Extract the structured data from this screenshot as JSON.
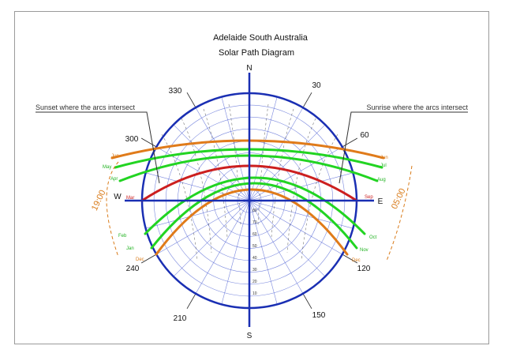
{
  "title": "Adelaide South Australia",
  "subtitle": "Solar Path Diagram",
  "sunset_note": "Sunset where the arcs intersect",
  "sunrise_note": "Sunrise where the arcs intersect",
  "compass": {
    "north": "N",
    "south": "S",
    "east": "E",
    "west": "W"
  },
  "azimuth_labels": [
    "30",
    "60",
    "120",
    "150",
    "210",
    "240",
    "300",
    "330"
  ],
  "altitude_labels": [
    "80",
    "70",
    "60",
    "50",
    "40",
    "30",
    "20",
    "10"
  ],
  "time_labels": {
    "sunset": "19:00",
    "sunrise": "05:00"
  },
  "month_labels_left": [
    {
      "text": "Jun",
      "color": "#d97b1a"
    },
    {
      "text": "May",
      "color": "#22b322"
    },
    {
      "text": "Apr",
      "color": "#22b322"
    },
    {
      "text": "Mar",
      "color": "#cc1f1f"
    },
    {
      "text": "Feb",
      "color": "#22b322"
    },
    {
      "text": "Jan",
      "color": "#22b322"
    },
    {
      "text": "Dec",
      "color": "#d97b1a"
    }
  ],
  "month_labels_right": [
    {
      "text": "Jun",
      "color": "#d97b1a"
    },
    {
      "text": "Jul",
      "color": "#22b322"
    },
    {
      "text": "Aug",
      "color": "#22b322"
    },
    {
      "text": "Sep",
      "color": "#cc1f1f"
    },
    {
      "text": "Oct",
      "color": "#22b322"
    },
    {
      "text": "Nov",
      "color": "#22b322"
    },
    {
      "text": "Dec",
      "color": "#d97b1a"
    }
  ],
  "colors": {
    "frame": "#9a9a9a",
    "axis": "#1a2fb3",
    "grid": "#5a6bd6",
    "solstice": "#e07b1a",
    "equinox": "#cc1f1f",
    "month": "#22d422",
    "text": "#111111"
  }
}
